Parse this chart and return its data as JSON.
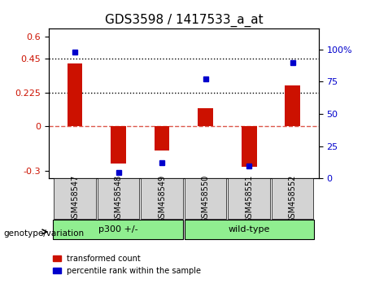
{
  "title": "GDS3598 / 1417533_a_at",
  "samples": [
    "GSM458547",
    "GSM458548",
    "GSM458549",
    "GSM458550",
    "GSM458551",
    "GSM458552"
  ],
  "transformed_counts": [
    0.42,
    -0.25,
    -0.16,
    0.12,
    -0.27,
    0.27
  ],
  "percentile_ranks": [
    98,
    5,
    12,
    77,
    10,
    90
  ],
  "groups": [
    "p300 +/-",
    "p300 +/-",
    "p300 +/-",
    "wild-type",
    "wild-type",
    "wild-type"
  ],
  "group_colors": {
    "p300 +/-": "#90EE90",
    "wild-type": "#90EE90"
  },
  "bar_color": "#CC1100",
  "dot_color": "#0000CC",
  "ylim_left": [
    -0.35,
    0.65
  ],
  "ylim_right": [
    0,
    116
  ],
  "yticks_left": [
    -0.3,
    0,
    0.225,
    0.45,
    0.6
  ],
  "yticks_right": [
    0,
    25,
    50,
    75,
    100
  ],
  "hlines": [
    0.45,
    0.225
  ],
  "hline_zero": 0,
  "background_color": "#ffffff",
  "plot_bg_color": "#ffffff",
  "legend_labels": [
    "transformed count",
    "percentile rank within the sample"
  ],
  "genotype_label": "genotype/variation"
}
